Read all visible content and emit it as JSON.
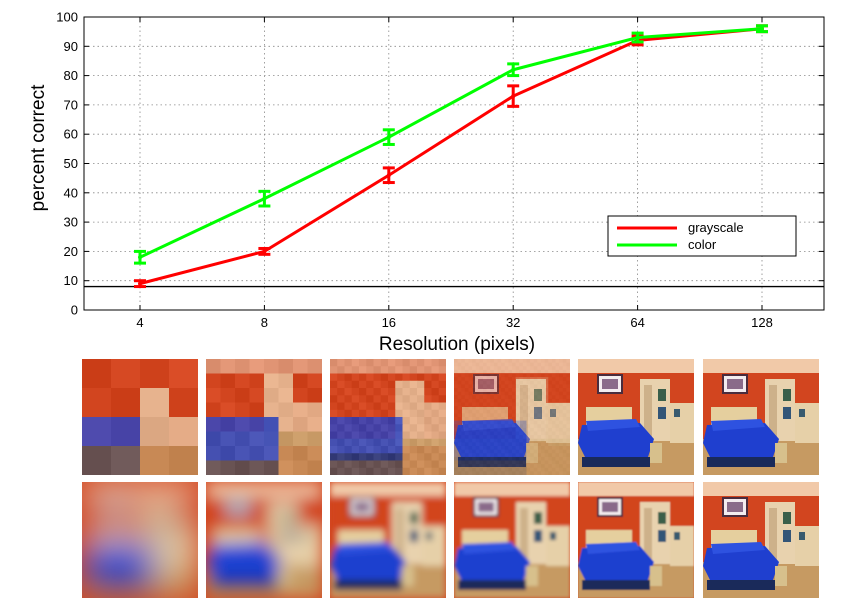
{
  "chart_data": {
    "type": "line",
    "title": "",
    "xlabel": "Resolution (pixels)",
    "ylabel": "percent correct",
    "categories": [
      "4",
      "8",
      "16",
      "32",
      "64",
      "128"
    ],
    "ylim": [
      0,
      100
    ],
    "yticks": [
      0,
      10,
      20,
      30,
      40,
      50,
      60,
      70,
      80,
      90,
      100
    ],
    "grid": true,
    "legend_position": "lower-right",
    "chance_level": 8,
    "series": [
      {
        "name": "grayscale",
        "color": "#ff0000",
        "values": [
          9,
          20,
          46,
          73,
          92,
          96
        ],
        "errors": [
          1,
          1,
          2.5,
          3.5,
          1.5,
          1
        ]
      },
      {
        "name": "color",
        "color": "#00ff00",
        "values": [
          18,
          38,
          59,
          82,
          93,
          96
        ],
        "errors": [
          2,
          2.5,
          2.5,
          2,
          1.5,
          1
        ]
      }
    ]
  },
  "thumbnails": {
    "rows": [
      {
        "style": "pixelated",
        "resolutions": [
          4,
          8,
          16,
          32,
          64,
          128
        ]
      },
      {
        "style": "blurred",
        "resolutions": [
          4,
          8,
          16,
          32,
          64,
          128
        ]
      }
    ]
  }
}
